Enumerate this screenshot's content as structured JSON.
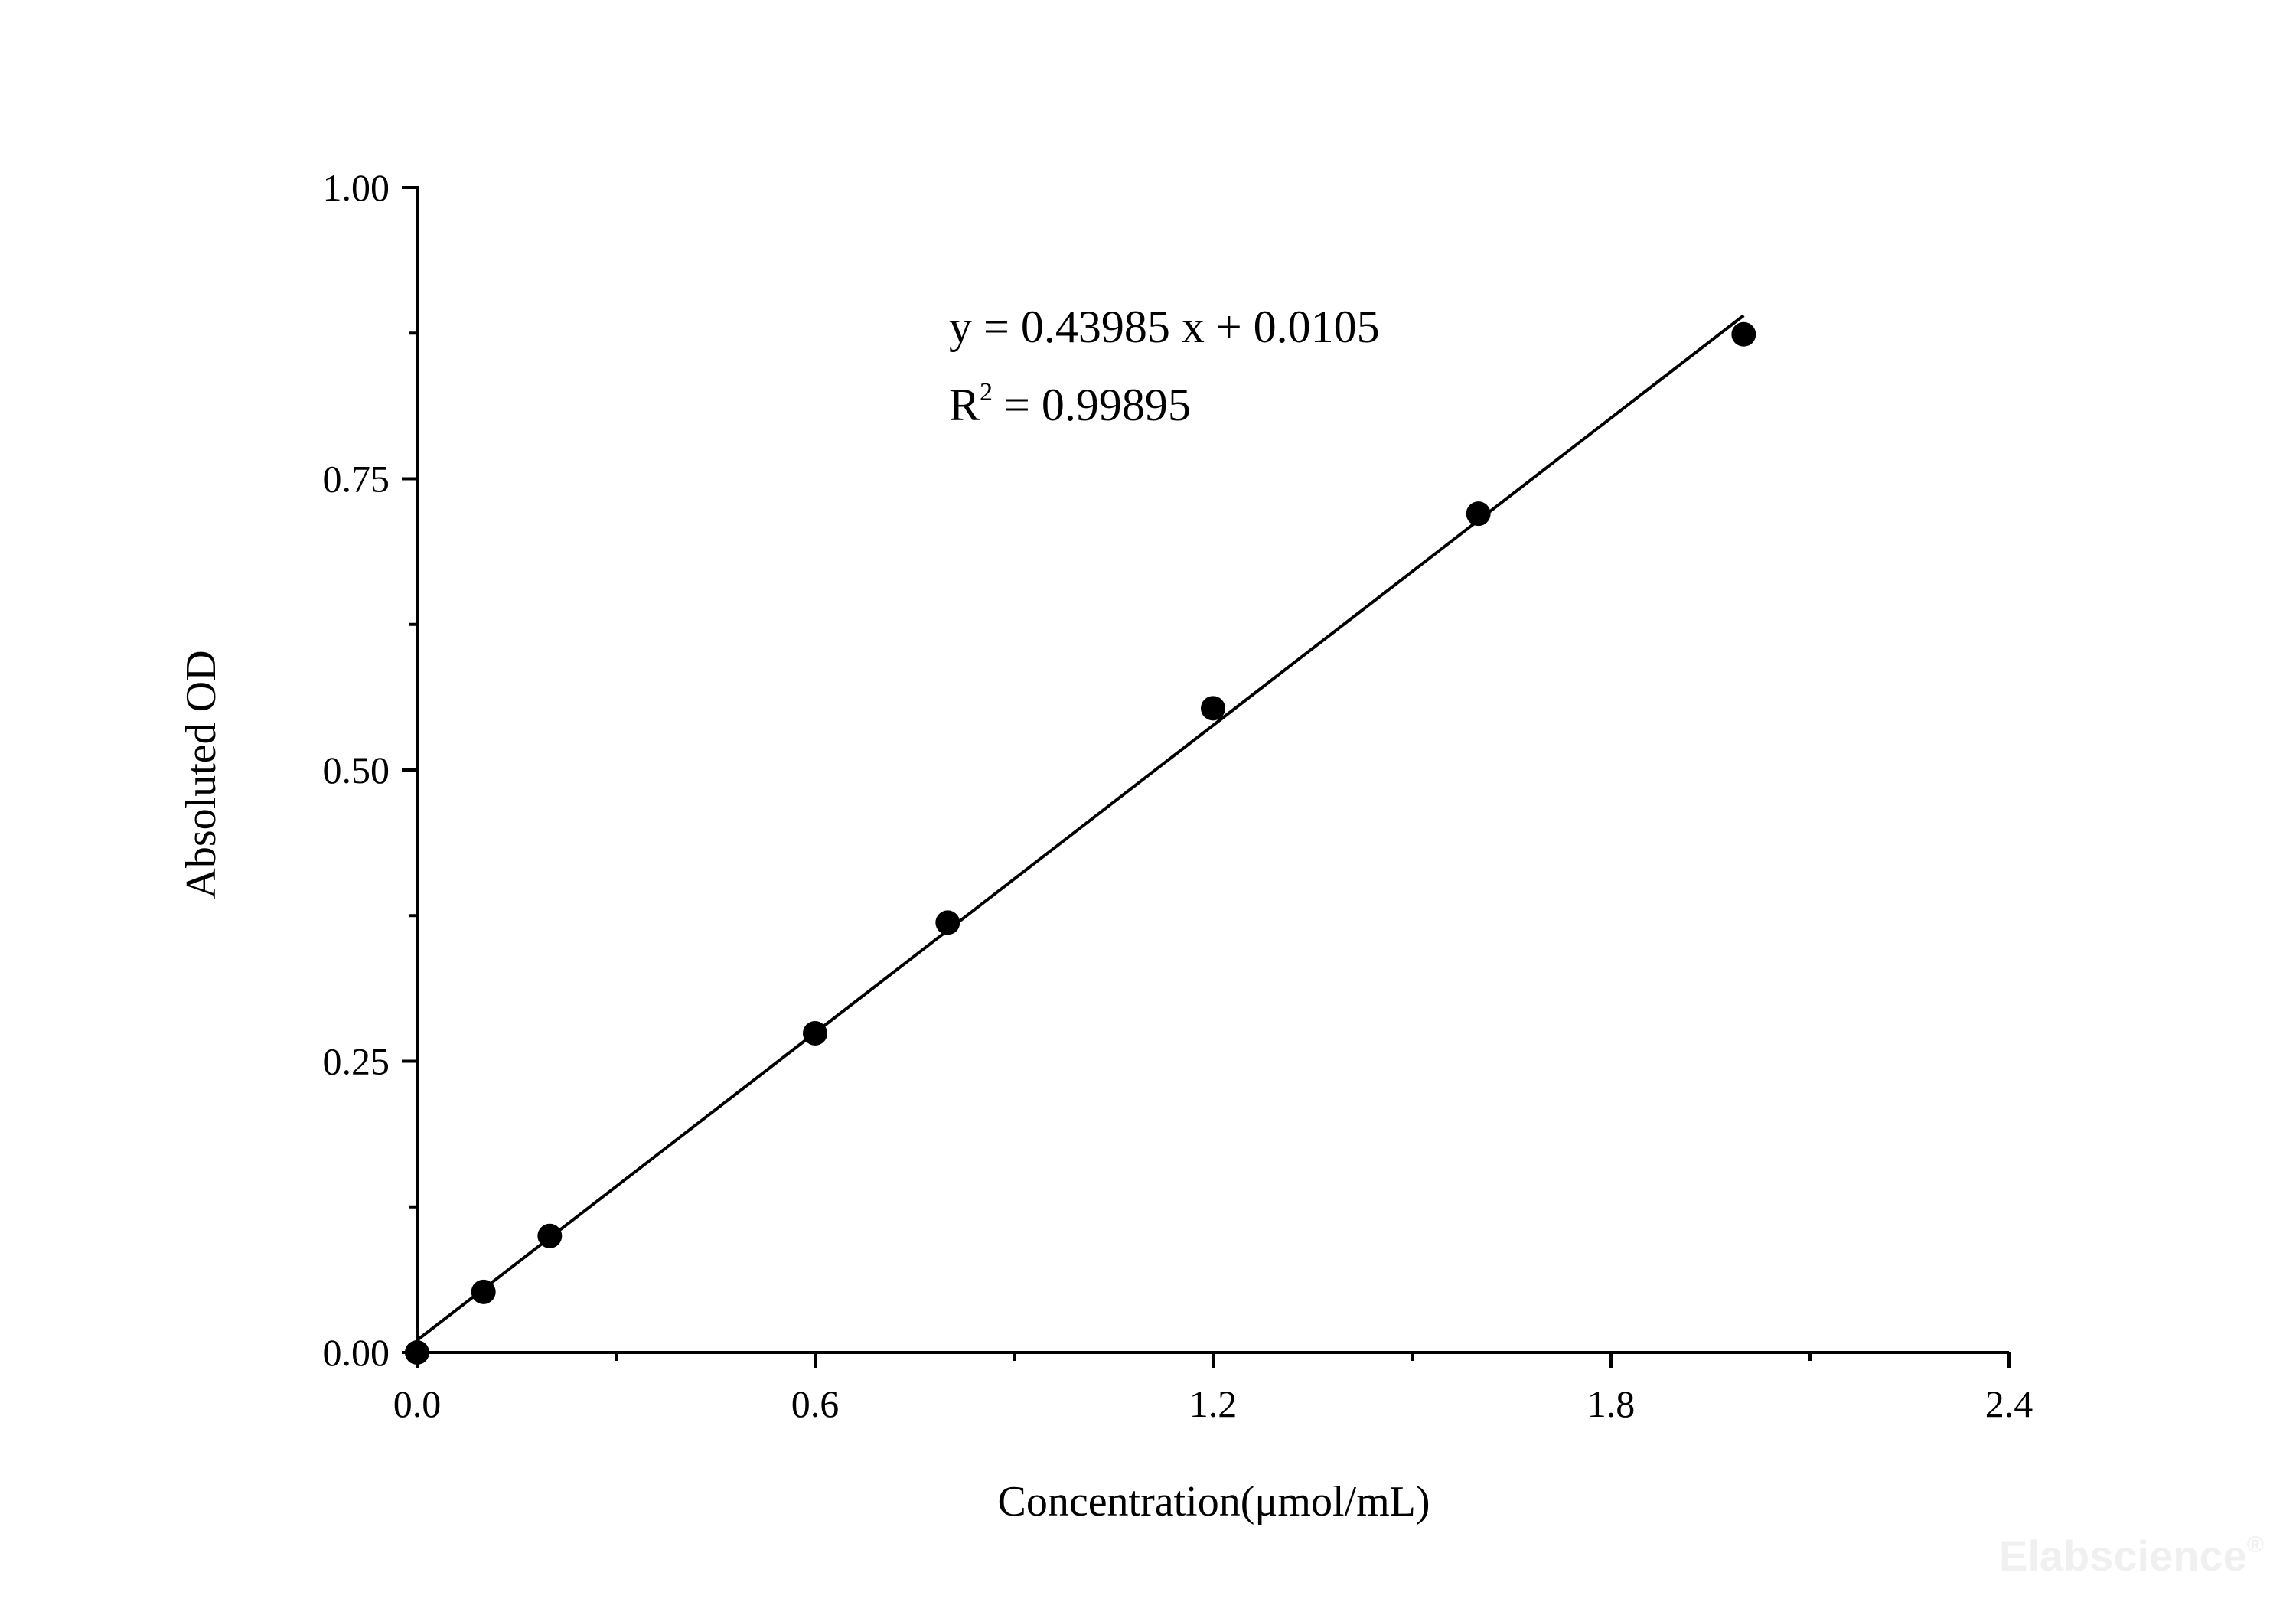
{
  "chart_data": {
    "type": "scatter",
    "title": "",
    "xlabel": "Concentration(μmol/mL)",
    "ylabel": "Absoluted OD",
    "xlim": [
      0,
      2.4
    ],
    "ylim": [
      0,
      1.0
    ],
    "x_ticks": [
      0.0,
      0.6,
      1.2,
      1.8,
      2.4
    ],
    "x_tick_labels": [
      "0.0",
      "0.6",
      "1.2",
      "1.8",
      "2.4"
    ],
    "x_minor_ticks": [
      0.3,
      0.9,
      1.5,
      2.1
    ],
    "y_ticks": [
      0.0,
      0.25,
      0.5,
      0.75,
      1.0
    ],
    "y_tick_labels": [
      "0.00",
      "0.25",
      "0.50",
      "0.75",
      "1.00"
    ],
    "y_minor_ticks": [
      0.125,
      0.375,
      0.625,
      0.875
    ],
    "grid": false,
    "legend": "none",
    "series": [
      {
        "points": [
          {
            "x": 0.0,
            "y": 0.0
          },
          {
            "x": 0.1,
            "y": 0.052
          },
          {
            "x": 0.2,
            "y": 0.1
          },
          {
            "x": 0.6,
            "y": 0.274
          },
          {
            "x": 0.8,
            "y": 0.369
          },
          {
            "x": 1.2,
            "y": 0.553
          },
          {
            "x": 1.6,
            "y": 0.72
          },
          {
            "x": 2.0,
            "y": 0.874
          }
        ],
        "color": "#000000",
        "marker": "circle"
      }
    ],
    "fit_line": {
      "slope": 0.43985,
      "intercept": 0.0105,
      "x_range": [
        0.0,
        2.0
      ],
      "color": "#000000"
    },
    "annotations": {
      "equation": "y = 0.43985 x + 0.0105",
      "r_squared_prefix": "R",
      "r_squared_superscript": "2",
      "r_squared_value": " = 0.99895"
    }
  },
  "watermark": {
    "text": "Elabscience",
    "mark": "®"
  }
}
